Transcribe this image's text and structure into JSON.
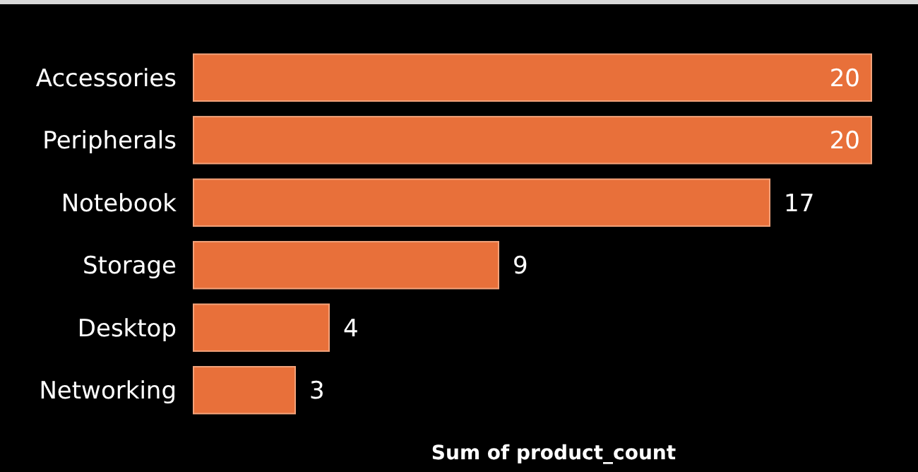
{
  "chart_data": {
    "type": "bar",
    "orientation": "horizontal",
    "categories": [
      "Accessories",
      "Peripherals",
      "Notebook",
      "Storage",
      "Desktop",
      "Networking"
    ],
    "values": [
      20,
      20,
      17,
      9,
      4,
      3
    ],
    "color": "#e8703a",
    "data_labels": true,
    "xlabel": "Sum of product_count"
  }
}
